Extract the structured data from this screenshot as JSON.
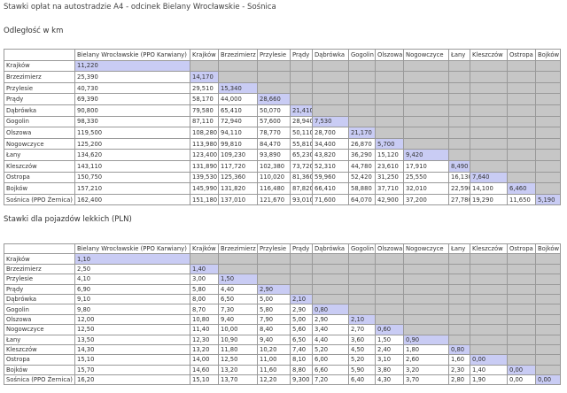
{
  "header": {
    "title": "Stawki opłat na autostradzie A4 - odcinek Bielany Wrocławskie - Sośnica"
  },
  "tables": [
    {
      "title": "Odległość w km",
      "columns": [
        "Bielany Wrocławskie (PPO Karwiany)",
        "Krajków",
        "Brzezimierz",
        "Przylesie",
        "Prądy",
        "Dąbrówka",
        "Gogolin",
        "Olszowa",
        "Nogowczyce",
        "Łany",
        "Kleszczów",
        "Ostropa",
        "Bojków"
      ],
      "rows": [
        {
          "label": "Krajków",
          "values": [
            "11,220"
          ]
        },
        {
          "label": "Brzezimierz",
          "values": [
            "25,390",
            "14,170"
          ]
        },
        {
          "label": "Przylesie",
          "values": [
            "40,730",
            "29,510",
            "15,340"
          ]
        },
        {
          "label": "Prądy",
          "values": [
            "69,390",
            "58,170",
            "44,000",
            "28,660"
          ]
        },
        {
          "label": "Dąbrówka",
          "values": [
            "90,800",
            "79,580",
            "65,410",
            "50,070",
            "21,410"
          ]
        },
        {
          "label": "Gogolin",
          "values": [
            "98,330",
            "87,110",
            "72,940",
            "57,600",
            "28,940",
            "7,530"
          ]
        },
        {
          "label": "Olszowa",
          "values": [
            "119,500",
            "108,280",
            "94,110",
            "78,770",
            "50,110",
            "28,700",
            "21,170"
          ]
        },
        {
          "label": "Nogowczyce",
          "values": [
            "125,200",
            "113,980",
            "99,810",
            "84,470",
            "55,810",
            "34,400",
            "26,870",
            "5,700"
          ]
        },
        {
          "label": "Łany",
          "values": [
            "134,620",
            "123,400",
            "109,230",
            "93,890",
            "65,230",
            "43,820",
            "36,290",
            "15,120",
            "9,420"
          ]
        },
        {
          "label": "Kleszczów",
          "values": [
            "143,110",
            "131,890",
            "117,720",
            "102,380",
            "73,720",
            "52,310",
            "44,780",
            "23,610",
            "17,910",
            "8,490"
          ]
        },
        {
          "label": "Ostropa",
          "values": [
            "150,750",
            "139,530",
            "125,360",
            "110,020",
            "81,360",
            "59,960",
            "52,420",
            "31,250",
            "25,550",
            "16,130",
            "7,640"
          ]
        },
        {
          "label": "Bojków",
          "values": [
            "157,210",
            "145,990",
            "131,820",
            "116,480",
            "87,820",
            "66,410",
            "58,880",
            "37,710",
            "32,010",
            "22,590",
            "14,100",
            "6,460"
          ]
        },
        {
          "label": "Sośnica (PPO Żernica)",
          "values": [
            "162,400",
            "151,180",
            "137,010",
            "121,670",
            "93,010",
            "71,600",
            "64,070",
            "42,900",
            "37,200",
            "27,780",
            "19,290",
            "11,650",
            "5,190"
          ]
        }
      ]
    },
    {
      "title": "Stawki dla pojazdów lekkich (PLN)",
      "columns": [
        "Bielany Wrocławskie (PPO Karwiany)",
        "Krajków",
        "Brzezimierz",
        "Przylesie",
        "Prądy",
        "Dąbrówka",
        "Gogolin",
        "Olszowa",
        "Nogowczyce",
        "Łany",
        "Kleszczów",
        "Ostropa",
        "Bojków"
      ],
      "rows": [
        {
          "label": "Krajków",
          "values": [
            "1,10"
          ]
        },
        {
          "label": "Brzezimierz",
          "values": [
            "2,50",
            "1,40"
          ]
        },
        {
          "label": "Przylesie",
          "values": [
            "4,10",
            "3,00",
            "1,50"
          ]
        },
        {
          "label": "Prądy",
          "values": [
            "6,90",
            "5,80",
            "4,40",
            "2,90"
          ]
        },
        {
          "label": "Dąbrówka",
          "values": [
            "9,10",
            "8,00",
            "6,50",
            "5,00",
            "2,10"
          ]
        },
        {
          "label": "Gogolin",
          "values": [
            "9,80",
            "8,70",
            "7,30",
            "5,80",
            "2,90",
            "0,80"
          ]
        },
        {
          "label": "Olszowa",
          "values": [
            "12,00",
            "10,80",
            "9,40",
            "7,90",
            "5,00",
            "2,90",
            "2,10"
          ]
        },
        {
          "label": "Nogowczyce",
          "values": [
            "12,50",
            "11,40",
            "10,00",
            "8,40",
            "5,60",
            "3,40",
            "2,70",
            "0,60"
          ]
        },
        {
          "label": "Łany",
          "values": [
            "13,50",
            "12,30",
            "10,90",
            "9,40",
            "6,50",
            "4,40",
            "3,60",
            "1,50",
            "0,90"
          ]
        },
        {
          "label": "Kleszczów",
          "values": [
            "14,30",
            "13,20",
            "11,80",
            "10,20",
            "7,40",
            "5,20",
            "4,50",
            "2,40",
            "1,80",
            "0,80"
          ]
        },
        {
          "label": "Ostropa",
          "values": [
            "15,10",
            "14,00",
            "12,50",
            "11,00",
            "8,10",
            "6,00",
            "5,20",
            "3,10",
            "2,60",
            "1,60",
            "0,00"
          ]
        },
        {
          "label": "Bojków",
          "values": [
            "15,70",
            "14,60",
            "13,20",
            "11,60",
            "8,80",
            "6,60",
            "5,90",
            "3,80",
            "3,20",
            "2,30",
            "1,40",
            "0,00"
          ]
        },
        {
          "label": "Sośnica (PPO Żernica)",
          "values": [
            "16,20",
            "15,10",
            "13,70",
            "12,20",
            "9,300",
            "7,20",
            "6,40",
            "4,30",
            "3,70",
            "2,80",
            "1,90",
            "0,00",
            "0,00"
          ]
        }
      ]
    }
  ]
}
